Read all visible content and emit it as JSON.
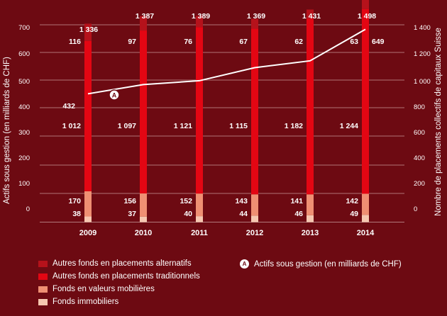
{
  "chart_data": {
    "type": "bar",
    "categories": [
      "2009",
      "2010",
      "2011",
      "2012",
      "2013",
      "2014"
    ],
    "ylabel_left": "Actifs sous gestion (en milliards de CHF)",
    "ylabel_right": "Nombre de placements collectifs de capitaux Suisse",
    "ylim_left": [
      0,
      700
    ],
    "ylim_right": [
      0,
      1400
    ],
    "left_ticks": [
      "700",
      "600",
      "500",
      "400",
      "300",
      "200",
      "100",
      "0"
    ],
    "right_ticks": [
      "1 400",
      "1 200",
      "1 000",
      "800",
      "600",
      "400",
      "200",
      "0"
    ],
    "totals": [
      "1 336",
      "1 387",
      "1 389",
      "1 369",
      "1 431",
      "1 498"
    ],
    "series": [
      {
        "name": "Fonds immobiliers",
        "color": "#f6c7b0",
        "values": [
          38,
          37,
          40,
          44,
          46,
          49
        ],
        "labels": [
          "38",
          "37",
          "40",
          "44",
          "46",
          "49"
        ]
      },
      {
        "name": "Fonds en valeurs mobilières",
        "color": "#ef8f73",
        "values": [
          170,
          156,
          152,
          143,
          141,
          142
        ],
        "labels": [
          "170",
          "156",
          "152",
          "143",
          "141",
          "142"
        ]
      },
      {
        "name": "Autres fonds en placements traditionnels",
        "color": "#e30613",
        "values": [
          1012,
          1097,
          1121,
          1115,
          1182,
          1244
        ],
        "labels": [
          "1 012",
          "1 097",
          "1 121",
          "1 115",
          "1 182",
          "1 244"
        ]
      },
      {
        "name": "Autres fonds en placements alternatifs",
        "color": "#b5121b",
        "values": [
          116,
          97,
          76,
          67,
          62,
          63
        ],
        "labels": [
          "116",
          "97",
          "76",
          "67",
          "62",
          "63"
        ]
      }
    ],
    "line": {
      "name": "Actifs sous gestion (en milliards de CHF)",
      "marker": "A",
      "axis": "left",
      "x": [
        "2009",
        "2010",
        "2011",
        "2012",
        "2013",
        "2014"
      ],
      "values": [
        432,
        463,
        476,
        520,
        543,
        649
      ],
      "labels": {
        "2009": "432",
        "2014": "649"
      },
      "color": "#ffffff"
    },
    "grid": true,
    "legend_position": "bottom-left"
  }
}
